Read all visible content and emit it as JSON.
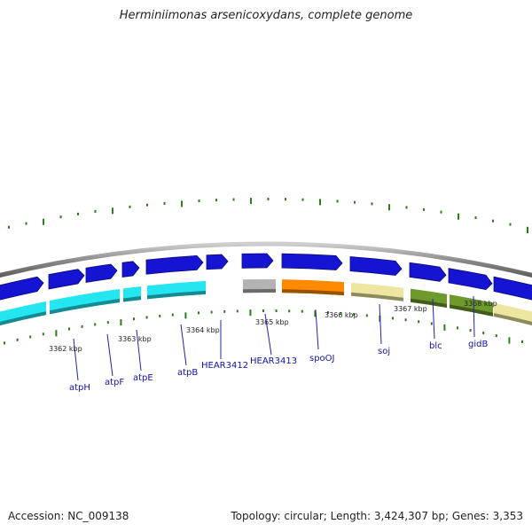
{
  "title": "Herminiimonas arsenicoxydans, complete genome",
  "footer": {
    "accession": "Accession: NC_009138",
    "stats": "Topology: circular; Length: 3,424,307 bp; Genes: 3,353"
  },
  "colors": {
    "backbone": "#8a8a8a",
    "tick": "#2d7d1d",
    "strand_blue": "#1414d2",
    "label_line": "#2222aa",
    "label_text": "#1111aa"
  },
  "scale": {
    "kbp_labels": [
      "3362 kbp",
      "3363 kbp",
      "3364 kbp",
      "3365 kbp",
      "3366 kbp",
      "3367 kbp",
      "3368 kbp"
    ]
  },
  "genes": [
    {
      "label": "atpH",
      "category_color": "#24e6f0"
    },
    {
      "label": "atpF",
      "category_color": "#24e6f0"
    },
    {
      "label": "atpE",
      "category_color": "#24e6f0"
    },
    {
      "label": "atpB",
      "category_color": "#24e6f0"
    },
    {
      "label": "HEAR3412",
      "category_color": ""
    },
    {
      "label": "HEAR3413",
      "category_color": "#b3b3b3"
    },
    {
      "label": "spoOJ",
      "category_color": "#ff8a00"
    },
    {
      "label": "soj",
      "category_color": "#ece6a0"
    },
    {
      "label": "blc",
      "category_color": "#6e9a2c"
    },
    {
      "label": "gidB",
      "category_color": "#6e9a2c"
    }
  ]
}
